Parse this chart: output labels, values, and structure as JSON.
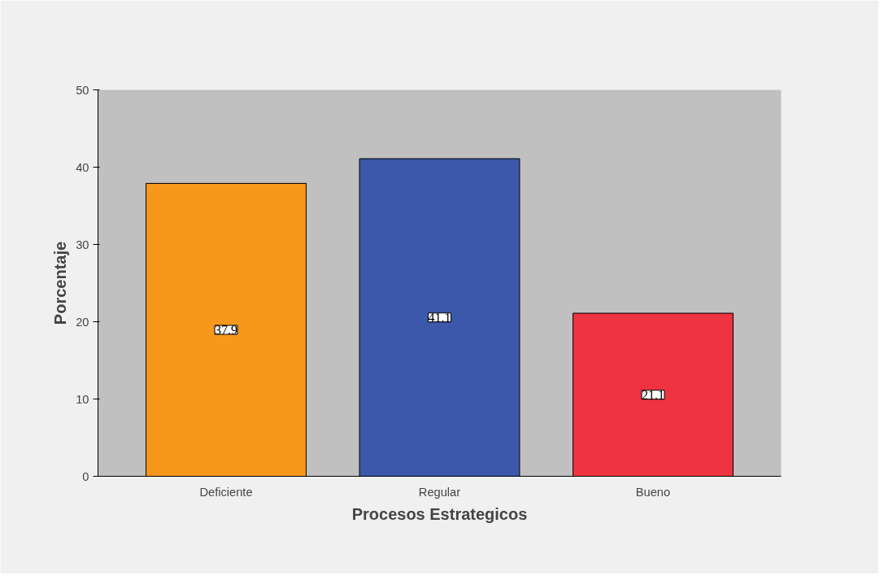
{
  "chart_data": {
    "type": "bar",
    "xlabel": "Procesos Estrategicos",
    "ylabel": "Porcentaje",
    "categories": [
      "Deficiente",
      "Regular",
      "Bueno"
    ],
    "values": [
      37.9,
      41.1,
      21.1
    ],
    "colors": [
      "#f7981d",
      "#3c58aa",
      "#ef3340"
    ],
    "ylim": [
      0,
      50
    ],
    "yticks": [
      0,
      10,
      20,
      30,
      40,
      50
    ],
    "data_labels": true,
    "grid": false
  }
}
